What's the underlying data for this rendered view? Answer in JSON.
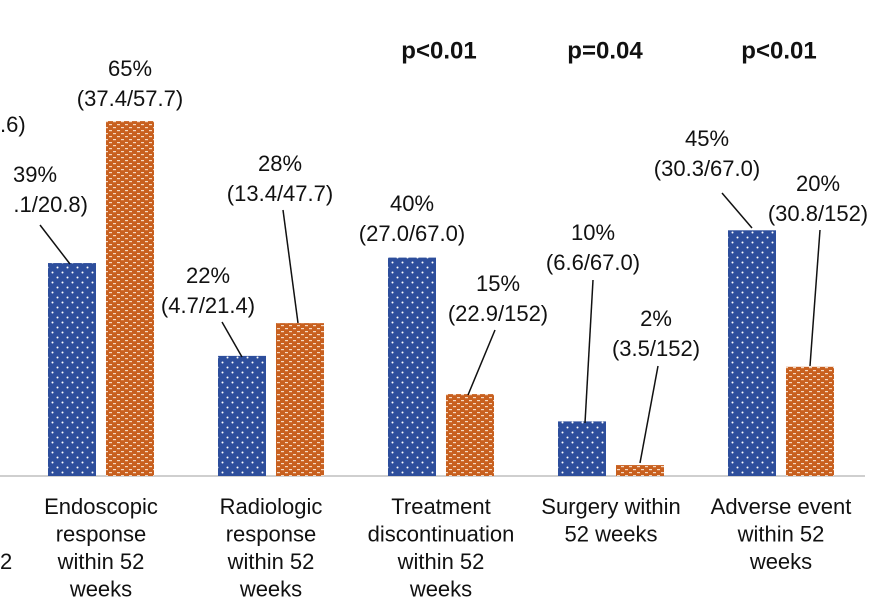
{
  "chart_data": {
    "type": "bar",
    "categories": [
      [
        "Endoscopic",
        "response",
        "within 52",
        "weeks"
      ],
      [
        "Radiologic",
        "response",
        "within 52",
        "weeks"
      ],
      [
        "Treatment",
        "discontinuation",
        "within 52",
        "weeks"
      ],
      [
        "Surgery within",
        "52 weeks"
      ],
      [
        "Adverse event",
        "within 52",
        "weeks"
      ]
    ],
    "series": [
      {
        "color": "#2d4e9c",
        "values": [
          39,
          22,
          40,
          10,
          45
        ],
        "value_labels": [
          "39%",
          "22%",
          "40%",
          "10%",
          "45%"
        ],
        "ci_labels": [
          ".1/20.8)",
          "(4.7/21.4)",
          "(27.0/67.0)",
          "(6.6/67.0)",
          "(30.3/67.0)"
        ]
      },
      {
        "color": "#c8601f",
        "values": [
          65,
          28,
          15,
          2,
          20
        ],
        "value_labels": [
          "65%",
          "28%",
          "15%",
          "2%",
          "20%"
        ],
        "ci_labels": [
          "(37.4/57.7)",
          "(13.4/47.7)",
          "(22.9/152)",
          "(3.5/152)",
          "(30.8/152)"
        ]
      }
    ],
    "p_values": [
      null,
      null,
      "p<0.01",
      "p=0.04",
      "p<0.01"
    ],
    "annotations": [
      ".6)",
      "2"
    ],
    "ylim": [
      0,
      70
    ]
  }
}
